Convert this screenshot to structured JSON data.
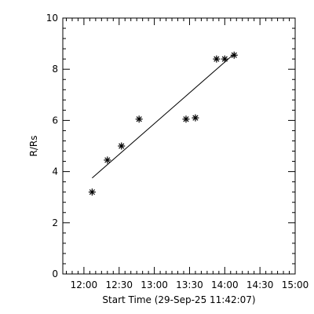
{
  "chart_data": {
    "type": "scatter",
    "title": "",
    "xlabel": "Start Time (29-Sep-25 11:42:07)",
    "ylabel": "R/Rs",
    "xlim": [
      "11:42",
      "15:00"
    ],
    "ylim": [
      0,
      10
    ],
    "xticks": [
      "12:00",
      "12:30",
      "13:00",
      "13:30",
      "14:00",
      "14:30",
      "15:00"
    ],
    "yticks": [
      0,
      2,
      4,
      6,
      8,
      10
    ],
    "grid": false,
    "legend": "none",
    "marker": "asterisk",
    "series": [
      {
        "x": [
          "12:07",
          "12:20",
          "12:32",
          "12:47",
          "13:27",
          "13:35",
          "13:53",
          "14:00",
          "14:08"
        ],
        "y": [
          3.2,
          4.45,
          5.0,
          6.05,
          6.05,
          6.1,
          8.4,
          8.4,
          8.55
        ]
      }
    ],
    "fit_line": {
      "x": [
        "12:07",
        "14:08"
      ],
      "y": [
        3.75,
        8.6
      ]
    }
  }
}
